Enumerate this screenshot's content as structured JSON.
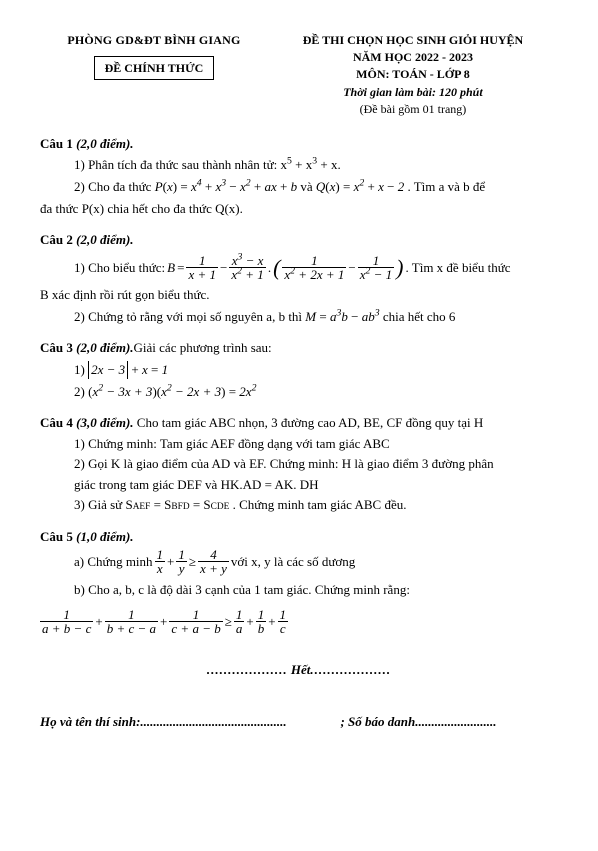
{
  "header": {
    "department": "PHÒNG GD&ĐT BÌNH GIANG",
    "official": "ĐỀ CHÍNH THỨC",
    "exam_title": "ĐỀ THI CHỌN HỌC SINH GIỎI HUYỆN",
    "year": "NĂM HỌC 2022 - 2023",
    "subject": "MÔN: TOÁN - LỚP 8",
    "duration": "Thời gian làm bài: 120 phút",
    "pages": "(Đề bài gồm 01 trang)"
  },
  "q1": {
    "title": "Câu 1",
    "pts": "(2,0 điểm).",
    "i1_pre": "1) Phân tích đa thức sau thành nhân tử: x",
    "i1_post": " + x.",
    "i2_a": "2) Cho đa thức ",
    "i2_b": " và ",
    "i2_c": " . Tìm a và b để",
    "i2_line2": "đa thức  P(x) chia hết cho đa thức Q(x)."
  },
  "q2": {
    "title": "Câu 2",
    "pts": "(2,0 điểm).",
    "i1_a": "1) Cho biểu thức:  ",
    "i1_tail": ". Tìm x đề biểu thức",
    "i1_line2": "B xác định rồi rút gọn biểu thức.",
    "i2": "2) Chứng tỏ rằng với mọi số nguyên a, b thì ",
    "i2_tail": " chia hết cho 6"
  },
  "q3": {
    "title": "Câu 3",
    "pts": "(2,0 điểm).",
    "intro": "Giải các phương trình sau:",
    "p1_lhs": "1) ",
    "p2_lhs": "2)"
  },
  "q4": {
    "title": "Câu 4",
    "pts": "(3,0 điểm).",
    "intro": " Cho tam giác ABC nhọn, 3 đường cao AD, BE, CF đồng quy tại H",
    "i1": "1) Chứng minh: Tam giác AEF đồng dạng với tam giác ABC",
    "i2": "2) Gọi K là giao điểm của AD và EF. Chứng minh: H là giao điểm 3 đường phân",
    "i2b": "giác trong tam giác DEF và HK.AD = AK. DH",
    "i3_a": "3) Giả sử S",
    "i3_b": " = S",
    "i3_c": " = S",
    "i3_d": " . Chứng minh tam giác ABC đều.",
    "sub_aef": "AEF",
    "sub_bfd": "BFD",
    "sub_cde": "CDE"
  },
  "q5": {
    "title": "Câu 5",
    "pts": "(1,0 điểm).",
    "a_pre": "a) Chứng minh ",
    "a_post": " với x, y là các số dương",
    "b": "b) Cho a, b, c là độ dài 3 cạnh của 1 tam giác. Chứng minh rằng:"
  },
  "footer": {
    "het": "Hết",
    "name_label": "Họ và tên thí sinh:",
    "id_label": "; Số báo danh"
  }
}
